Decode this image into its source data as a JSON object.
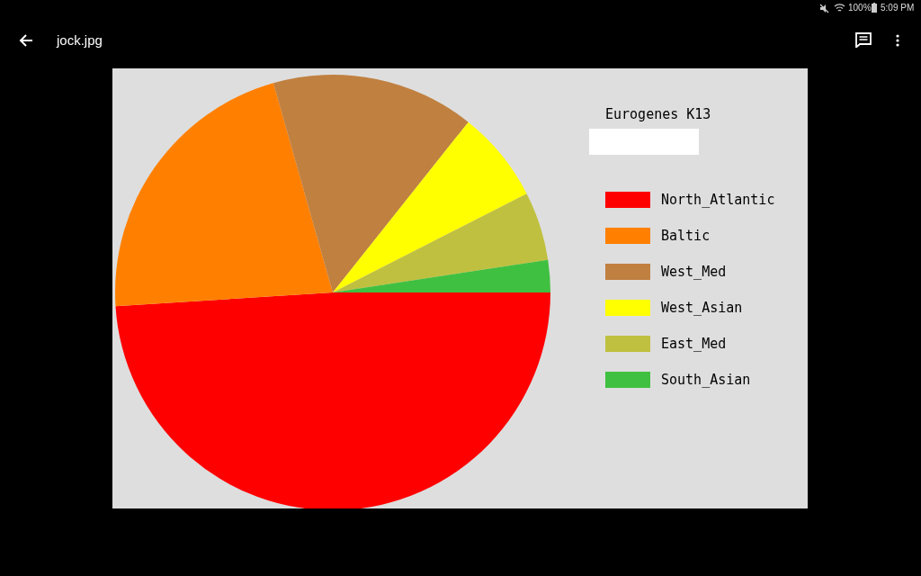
{
  "chart_data": {
    "type": "pie",
    "legend_title": "Eurogenes K13",
    "categories": [
      "North_Atlantic",
      "Baltic",
      "West_Med",
      "West_Asian",
      "East_Med",
      "South_Asian"
    ],
    "values": [
      49.0,
      21.6,
      15.1,
      6.8,
      5.1,
      2.4
    ],
    "colors": [
      "#ff0000",
      "#ff8000",
      "#c08040",
      "#ffff00",
      "#c0c040",
      "#40c040"
    ],
    "legend": "right",
    "annotations": [
      "jock.jpg",
      "100%",
      "5:09 PM"
    ]
  }
}
